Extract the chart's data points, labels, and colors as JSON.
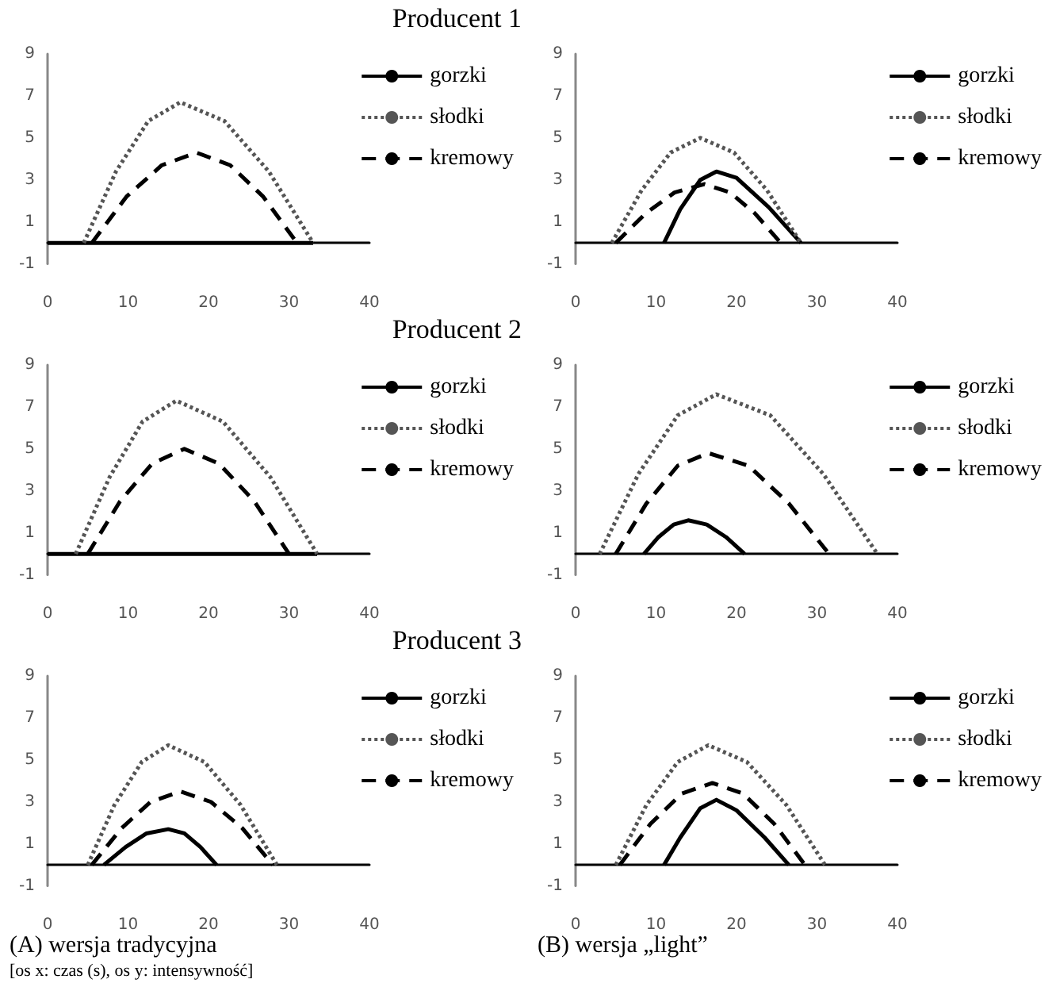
{
  "chart_data": [
    {
      "type": "line",
      "title": "Producent 1",
      "xlim": [
        0,
        40
      ],
      "xticks": [
        0,
        10,
        20,
        30,
        40
      ],
      "ylim": [
        -1,
        9
      ],
      "yticks": [
        -1,
        1,
        3,
        5,
        7,
        9
      ],
      "legend": "right",
      "series": [
        {
          "name": "gorzki",
          "color": "#000000",
          "line_style": "solid",
          "x": [
            0,
            33
          ],
          "values": [
            0,
            0
          ]
        },
        {
          "name": "słodki",
          "color": "#555555",
          "line_style": "dotted",
          "x": [
            4.5,
            8.5,
            12.5,
            16.5,
            22,
            27.5,
            33
          ],
          "values": [
            0,
            3.4,
            5.8,
            6.7,
            5.8,
            3.4,
            0
          ]
        },
        {
          "name": "kremowy",
          "color": "#000000",
          "line_style": "dashed",
          "x": [
            5.5,
            9.8,
            14.2,
            18.5,
            22.7,
            26.8,
            31
          ],
          "values": [
            0,
            2.2,
            3.7,
            4.3,
            3.7,
            2.2,
            0
          ]
        }
      ]
    },
    {
      "type": "line",
      "xlim": [
        0,
        40
      ],
      "xticks": [
        0,
        10,
        20,
        30,
        40
      ],
      "ylim": [
        -1,
        9
      ],
      "yticks": [
        -1,
        1,
        3,
        5,
        7,
        9
      ],
      "legend": "right",
      "series": [
        {
          "name": "gorzki",
          "color": "#000000",
          "line_style": "solid",
          "x": [
            11,
            13,
            15.5,
            17.5,
            20,
            24,
            28
          ],
          "values": [
            0,
            1.6,
            3.0,
            3.4,
            3.1,
            1.7,
            0
          ]
        },
        {
          "name": "słodki",
          "color": "#555555",
          "line_style": "dotted",
          "x": [
            4.5,
            8.2,
            11.8,
            15.5,
            19.7,
            23.8,
            28
          ],
          "values": [
            0,
            2.5,
            4.3,
            5.0,
            4.3,
            2.5,
            0
          ]
        },
        {
          "name": "kremowy",
          "color": "#000000",
          "line_style": "dashed",
          "x": [
            5,
            8.7,
            12.3,
            16,
            19.2,
            22.3,
            25.5
          ],
          "values": [
            0,
            1.4,
            2.4,
            2.8,
            2.4,
            1.4,
            0
          ]
        }
      ]
    },
    {
      "type": "line",
      "title": "Producent 2",
      "xlim": [
        0,
        40
      ],
      "xticks": [
        0,
        10,
        20,
        30,
        40
      ],
      "ylim": [
        -1,
        9
      ],
      "yticks": [
        -1,
        1,
        3,
        5,
        7,
        9
      ],
      "legend": "right",
      "series": [
        {
          "name": "gorzki",
          "color": "#000000",
          "line_style": "solid",
          "x": [
            0,
            33.5
          ],
          "values": [
            0,
            0
          ]
        },
        {
          "name": "słodki",
          "color": "#555555",
          "line_style": "dotted",
          "x": [
            3.5,
            7.7,
            11.8,
            16,
            21.8,
            27.7,
            33.5
          ],
          "values": [
            0,
            3.65,
            6.3,
            7.3,
            6.3,
            3.65,
            0
          ]
        },
        {
          "name": "kremowy",
          "color": "#000000",
          "line_style": "dashed",
          "x": [
            5,
            9,
            13,
            17,
            21.3,
            25.7,
            30
          ],
          "values": [
            0,
            2.5,
            4.3,
            5,
            4.3,
            2.5,
            0
          ]
        }
      ]
    },
    {
      "type": "line",
      "xlim": [
        0,
        40
      ],
      "xticks": [
        0,
        10,
        20,
        30,
        40
      ],
      "ylim": [
        -1,
        9
      ],
      "yticks": [
        -1,
        1,
        3,
        5,
        7,
        9
      ],
      "legend": "right",
      "series": [
        {
          "name": "gorzki",
          "color": "#000000",
          "line_style": "solid",
          "x": [
            8.5,
            10.3,
            12.2,
            14,
            16.3,
            18.7,
            21
          ],
          "values": [
            0,
            0.8,
            1.4,
            1.6,
            1.4,
            0.8,
            0
          ]
        },
        {
          "name": "słodki",
          "color": "#555555",
          "line_style": "dotted",
          "x": [
            3,
            7.8,
            12.7,
            17.5,
            24.2,
            30.8,
            37.5
          ],
          "values": [
            0,
            3.8,
            6.6,
            7.6,
            6.6,
            3.8,
            0
          ]
        },
        {
          "name": "kremowy",
          "color": "#000000",
          "line_style": "dashed",
          "x": [
            5,
            8.8,
            12.7,
            16.5,
            21.5,
            26.5,
            31.5
          ],
          "values": [
            0,
            2.4,
            4.2,
            4.8,
            4.2,
            2.4,
            0
          ]
        }
      ]
    },
    {
      "type": "line",
      "title": "Producent 3",
      "xlim": [
        0,
        40
      ],
      "xticks": [
        0,
        10,
        20,
        30,
        40
      ],
      "ylim": [
        -1,
        9
      ],
      "yticks": [
        -1,
        1,
        3,
        5,
        7,
        9
      ],
      "legend": "right",
      "annotations": [
        "(A) wersja tradycyjna",
        "[os x: czas (s), os y: intensywność]"
      ],
      "series": [
        {
          "name": "gorzki",
          "color": "#000000",
          "line_style": "solid",
          "x": [
            7,
            9.7,
            12.3,
            15,
            17,
            19,
            21
          ],
          "values": [
            0,
            0.85,
            1.5,
            1.7,
            1.5,
            0.85,
            0
          ]
        },
        {
          "name": "słodki",
          "color": "#555555",
          "line_style": "dotted",
          "x": [
            5,
            8.3,
            11.7,
            15,
            19.5,
            24,
            28.5
          ],
          "values": [
            0,
            2.85,
            4.9,
            5.7,
            4.9,
            2.85,
            0
          ]
        },
        {
          "name": "kremowy",
          "color": "#000000",
          "line_style": "dashed",
          "x": [
            5.5,
            9.2,
            12.8,
            16.5,
            20.3,
            24.2,
            28
          ],
          "values": [
            0,
            1.75,
            3.0,
            3.5,
            3.0,
            1.75,
            0
          ]
        }
      ]
    },
    {
      "type": "line",
      "xlim": [
        0,
        40
      ],
      "xticks": [
        0,
        10,
        20,
        30,
        40
      ],
      "ylim": [
        -1,
        9
      ],
      "yticks": [
        -1,
        1,
        3,
        5,
        7,
        9
      ],
      "legend": "right",
      "annotations": [
        "(B) wersja „light”"
      ],
      "series": [
        {
          "name": "gorzki",
          "color": "#000000",
          "line_style": "solid",
          "x": [
            11,
            13,
            15.5,
            17.5,
            20,
            23.5,
            26.5
          ],
          "values": [
            0,
            1.3,
            2.7,
            3.1,
            2.6,
            1.3,
            0
          ]
        },
        {
          "name": "słodki",
          "color": "#555555",
          "line_style": "dotted",
          "x": [
            5,
            8.8,
            12.7,
            16.5,
            21.3,
            26.2,
            31
          ],
          "values": [
            0,
            2.85,
            4.9,
            5.7,
            4.9,
            2.85,
            0
          ]
        },
        {
          "name": "kremowy",
          "color": "#000000",
          "line_style": "dashed",
          "x": [
            5.5,
            9.3,
            13.2,
            17,
            20.8,
            24.7,
            28.5
          ],
          "values": [
            0,
            1.95,
            3.4,
            3.9,
            3.4,
            1.95,
            0
          ]
        }
      ]
    }
  ]
}
